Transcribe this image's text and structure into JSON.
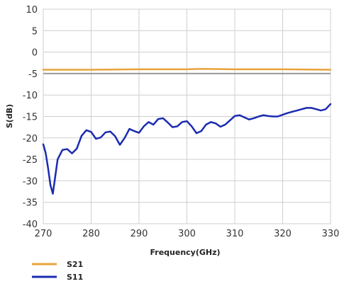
{
  "chart_data": {
    "type": "line",
    "xlabel": "Frequency(GHz)",
    "ylabel": "S(dB)",
    "xlim": [
      270,
      330
    ],
    "ylim": [
      -40,
      10
    ],
    "xticks": [
      270,
      280,
      290,
      300,
      310,
      320,
      330
    ],
    "yticks": [
      10,
      5,
      0,
      -5,
      -10,
      -15,
      -20,
      -25,
      -30,
      -35,
      -40
    ],
    "grid": true,
    "reference_line": {
      "y": -5,
      "color": "#999999"
    },
    "legend_position": "bottom-left",
    "series": [
      {
        "name": "S21",
        "color": "#E8A33C",
        "x": [
          270,
          280,
          290,
          300,
          303,
          310,
          320,
          330
        ],
        "y": [
          -4.1,
          -4.1,
          -4.0,
          -4.0,
          -3.9,
          -4.0,
          -4.0,
          -4.1
        ]
      },
      {
        "name": "S11",
        "color": "#1A2BB0",
        "x": [
          270,
          270.5,
          271,
          271.5,
          272,
          272.5,
          273,
          274,
          275,
          276,
          277,
          278,
          279,
          280,
          281,
          282,
          283,
          284,
          285,
          286,
          287,
          288,
          289,
          290,
          291,
          292,
          293,
          294,
          295,
          296,
          297,
          298,
          299,
          300,
          301,
          302,
          303,
          304,
          305,
          306,
          307,
          308,
          309,
          310,
          311,
          312,
          313,
          314,
          315,
          316,
          317,
          318,
          319,
          320,
          321,
          322,
          323,
          324,
          325,
          326,
          327,
          328,
          329,
          330
        ],
        "y": [
          -21.5,
          -23.5,
          -27,
          -31,
          -33,
          -29,
          -25,
          -22.8,
          -22.6,
          -23.6,
          -22.5,
          -19.5,
          -18.2,
          -18.6,
          -20.2,
          -19.9,
          -18.7,
          -18.5,
          -19.6,
          -21.6,
          -20.0,
          -17.9,
          -18.4,
          -18.8,
          -17.3,
          -16.3,
          -16.9,
          -15.6,
          -15.4,
          -16.4,
          -17.5,
          -17.3,
          -16.3,
          -16.1,
          -17.3,
          -18.9,
          -18.4,
          -16.9,
          -16.3,
          -16.6,
          -17.4,
          -16.9,
          -15.9,
          -14.9,
          -14.7,
          -15.2,
          -15.7,
          -15.4,
          -15.0,
          -14.7,
          -14.9,
          -15.0,
          -15.0,
          -14.6,
          -14.2,
          -13.9,
          -13.6,
          -13.3,
          -13.0,
          -13.0,
          -13.3,
          -13.6,
          -13.3,
          -12.1
        ]
      }
    ]
  }
}
